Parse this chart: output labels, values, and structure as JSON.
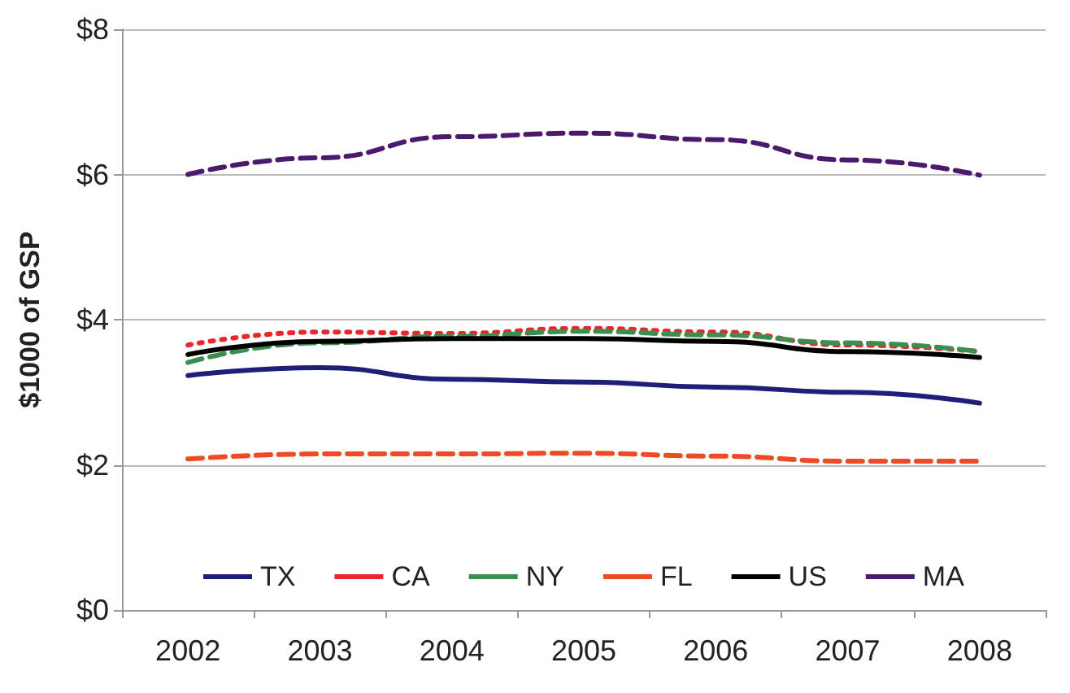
{
  "chart_data": {
    "type": "line",
    "ylabel": "$1000 of GSP",
    "categories": [
      "2002",
      "2003",
      "2004",
      "2005",
      "2006",
      "2007",
      "2008"
    ],
    "ylim": [
      0,
      8
    ],
    "yticks": [
      {
        "value": 0,
        "label": "$0"
      },
      {
        "value": 2,
        "label": "$2"
      },
      {
        "value": 4,
        "label": "$4"
      },
      {
        "value": 6,
        "label": "$6"
      },
      {
        "value": 8,
        "label": "$8"
      }
    ],
    "grid": "y",
    "legend": "bottom",
    "marker": "none",
    "series": [
      {
        "name": "TX",
        "color": "#1f1f7a",
        "line_style": "solid",
        "values": [
          3.23,
          3.34,
          3.18,
          3.14,
          3.07,
          3.0,
          2.85
        ]
      },
      {
        "name": "CA",
        "color": "#e8262b",
        "line_style": "dotted",
        "values": [
          3.65,
          3.83,
          3.81,
          3.88,
          3.83,
          3.65,
          3.56
        ]
      },
      {
        "name": "NY",
        "color": "#3a8f4e",
        "line_style": "dashed",
        "values": [
          3.41,
          3.68,
          3.77,
          3.84,
          3.79,
          3.68,
          3.56
        ]
      },
      {
        "name": "FL",
        "color": "#ec4b26",
        "line_style": "dashed",
        "values": [
          2.08,
          2.15,
          2.15,
          2.16,
          2.12,
          2.05,
          2.05
        ]
      },
      {
        "name": "US",
        "color": "#000000",
        "line_style": "solid",
        "values": [
          3.52,
          3.7,
          3.74,
          3.74,
          3.7,
          3.56,
          3.48
        ]
      },
      {
        "name": "MA",
        "color": "#4b1a6e",
        "line_style": "dashed",
        "values": [
          6.0,
          6.23,
          6.52,
          6.57,
          6.48,
          6.2,
          5.99
        ]
      }
    ]
  }
}
